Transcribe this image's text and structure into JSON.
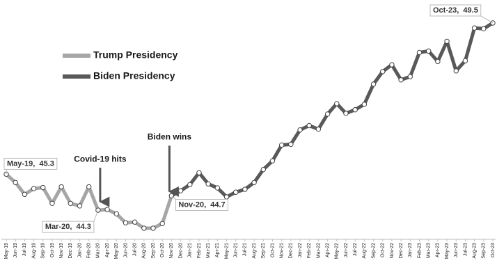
{
  "chart_data": {
    "type": "line",
    "categories": [
      "May-19",
      "Jun-19",
      "Jul-19",
      "Aug-19",
      "Sep-19",
      "Oct-19",
      "Nov-19",
      "Dec-19",
      "Jan-20",
      "Feb-20",
      "Mar-20",
      "Apr-20",
      "May-20",
      "Jun-20",
      "Jul-20",
      "Aug-20",
      "Sep-20",
      "Oct-20",
      "Nov-20",
      "Dec-20",
      "Jan-21",
      "Feb-21",
      "Mar-21",
      "Apr-21",
      "May-21",
      "Jun-21",
      "Jul-21",
      "Aug-21",
      "Sep-21",
      "Oct-21",
      "Nov-21",
      "Dec-21",
      "Jan-22",
      "Feb-22",
      "Mar-22",
      "Apr-22",
      "May-22",
      "Jun-22",
      "Jul-22",
      "Aug-22",
      "Sep-22",
      "Oct-22",
      "Nov-22",
      "Dec-22",
      "Jan-23",
      "Feb-23",
      "Mar-23",
      "Apr-23",
      "May-23",
      "Jun-23",
      "Jul-23",
      "Aug-23",
      "Sep-23",
      "Oct-23"
    ],
    "series": [
      {
        "name": "Trump Presidency",
        "color": "#a6a6a6",
        "values": [
          45.3,
          45.07,
          44.74,
          44.9,
          44.93,
          44.49,
          44.95,
          44.49,
          44.42,
          44.95,
          44.3,
          44.32,
          44.2,
          43.95,
          43.97,
          43.8,
          43.8,
          43.93,
          44.7,
          null,
          null,
          null,
          null,
          null,
          null,
          null,
          null,
          null,
          null,
          null,
          null,
          null,
          null,
          null,
          null,
          null,
          null,
          null,
          null,
          null,
          null,
          null,
          null,
          null,
          null,
          null,
          null,
          null,
          null,
          null,
          null,
          null,
          null,
          null
        ],
        "value_labels": [
          "May-19,  45.3",
          null,
          null,
          null,
          null,
          null,
          null,
          null,
          null,
          null,
          "Mar-20,  44.3",
          null,
          null,
          null,
          null,
          null,
          null,
          null,
          null,
          null,
          null,
          null,
          null,
          null,
          null,
          null,
          null,
          null,
          null,
          null,
          null,
          null,
          null,
          null,
          null,
          null,
          null,
          null,
          null,
          null,
          null,
          null,
          null,
          null,
          null,
          null,
          null,
          null,
          null,
          null,
          null,
          null,
          null,
          null
        ]
      },
      {
        "name": "Biden Presidency",
        "color": "#595959",
        "values": [
          null,
          null,
          null,
          null,
          null,
          null,
          null,
          null,
          null,
          null,
          null,
          null,
          null,
          null,
          null,
          null,
          null,
          null,
          44.7,
          44.84,
          45.01,
          45.34,
          45.03,
          44.92,
          44.67,
          44.8,
          44.88,
          45.07,
          45.43,
          45.67,
          46.11,
          46.13,
          46.53,
          46.65,
          46.55,
          46.97,
          47.26,
          46.99,
          47.09,
          47.24,
          47.8,
          48.15,
          48.34,
          47.92,
          48.01,
          48.68,
          48.72,
          48.43,
          48.99,
          48.17,
          48.45,
          49.36,
          49.34,
          49.5
        ],
        "value_labels": [
          null,
          null,
          null,
          null,
          null,
          null,
          null,
          null,
          null,
          null,
          null,
          null,
          null,
          null,
          null,
          null,
          null,
          null,
          "Nov-20,  44.7",
          null,
          null,
          null,
          null,
          null,
          null,
          null,
          null,
          null,
          null,
          null,
          null,
          null,
          null,
          null,
          null,
          null,
          null,
          null,
          null,
          null,
          null,
          null,
          null,
          null,
          null,
          null,
          null,
          null,
          null,
          null,
          null,
          null,
          null,
          "Oct-23,  49.5"
        ]
      }
    ],
    "annotations": [
      {
        "text": "Covid-19 hits",
        "category": "Mar-20"
      },
      {
        "text": "Biden wins",
        "category": "Nov-20"
      }
    ],
    "legend": "upper-left"
  }
}
